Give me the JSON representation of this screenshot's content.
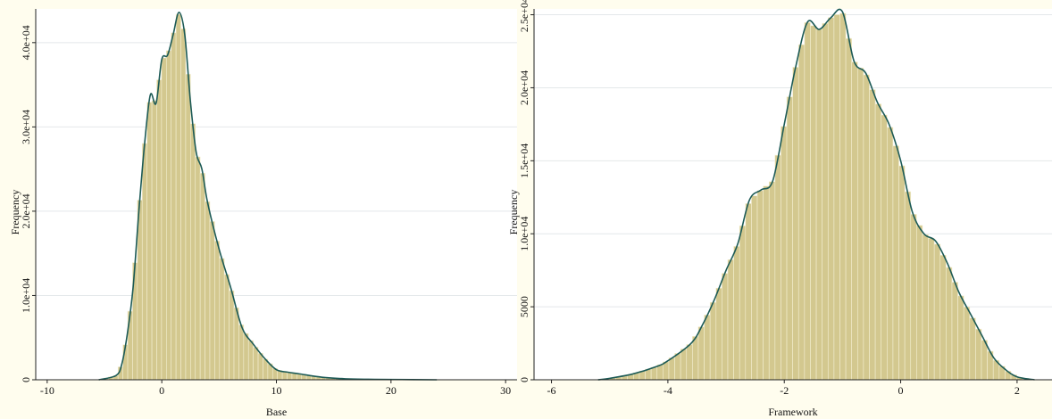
{
  "colors": {
    "background": "#fffdee",
    "plot_bg": "#ffffff",
    "bar_fill": "#d3c88f",
    "bar_edge": "#f4efd2",
    "density_line": "#1c5a56",
    "grid": "#e4e8ea",
    "axis": "#222222"
  },
  "chart_data": [
    {
      "type": "bar",
      "subtype": "histogram-with-density",
      "xlabel": "Base",
      "ylabel": "Frequency",
      "xlim": [
        -11,
        31
      ],
      "ylim": [
        0,
        44000
      ],
      "xticks": [
        {
          "value": -10,
          "label": "-10"
        },
        {
          "value": 0,
          "label": "0"
        },
        {
          "value": 10,
          "label": "10"
        },
        {
          "value": 20,
          "label": "20"
        },
        {
          "value": 30,
          "label": "30"
        }
      ],
      "yticks": [
        {
          "value": 0,
          "label": "0"
        },
        {
          "value": 10000,
          "label": "1.0e+04"
        },
        {
          "value": 20000,
          "label": "2.0e+04"
        },
        {
          "value": 30000,
          "label": "3.0e+04"
        },
        {
          "value": 40000,
          "label": "4.0e+04"
        }
      ],
      "grid": true,
      "density_x": [
        -5.5,
        -4,
        -3.5,
        -3,
        -2.5,
        -2,
        -1.5,
        -1,
        -0.5,
        0,
        0.5,
        1,
        1.5,
        2,
        2.5,
        3,
        3.5,
        4,
        5,
        6,
        7,
        8,
        9,
        10,
        11,
        12,
        14,
        16,
        18,
        20,
        24
      ],
      "density_y": [
        0,
        500,
        1800,
        5500,
        11000,
        20000,
        28000,
        33800,
        32800,
        38000,
        38500,
        41000,
        43600,
        41000,
        33000,
        27000,
        25000,
        21000,
        15500,
        11000,
        6200,
        4200,
        2500,
        1200,
        900,
        700,
        300,
        120,
        60,
        40,
        0
      ]
    },
    {
      "type": "bar",
      "subtype": "histogram-with-density",
      "xlabel": "Framework",
      "ylabel": "Frequency",
      "xlim": [
        -6.3,
        2.6
      ],
      "ylim": [
        0,
        25400
      ],
      "xticks": [
        {
          "value": -6,
          "label": "-6"
        },
        {
          "value": -4,
          "label": "-4"
        },
        {
          "value": -2,
          "label": "-2"
        },
        {
          "value": 0,
          "label": "0"
        },
        {
          "value": 2,
          "label": "2"
        }
      ],
      "yticks": [
        {
          "value": 0,
          "label": "0"
        },
        {
          "value": 5000,
          "label": "5000"
        },
        {
          "value": 10000,
          "label": "1.0e+04"
        },
        {
          "value": 15000,
          "label": "1.5e+04"
        },
        {
          "value": 20000,
          "label": "2.0e+04"
        },
        {
          "value": 25000,
          "label": "2.5e+04"
        }
      ],
      "grid": true,
      "density_x": [
        -5.2,
        -5.0,
        -4.6,
        -4.2,
        -4.0,
        -3.6,
        -3.4,
        -3.2,
        -3.0,
        -2.8,
        -2.6,
        -2.4,
        -2.2,
        -2.0,
        -1.8,
        -1.6,
        -1.4,
        -1.2,
        -1.0,
        -0.8,
        -0.6,
        -0.4,
        -0.2,
        0.0,
        0.2,
        0.4,
        0.6,
        0.8,
        1.0,
        1.2,
        1.4,
        1.6,
        1.8,
        2.0,
        2.3
      ],
      "density_y": [
        0,
        100,
        400,
        900,
        1300,
        2500,
        3800,
        5500,
        7500,
        9300,
        12300,
        13000,
        13600,
        17500,
        21500,
        24500,
        24000,
        24800,
        25200,
        21800,
        21000,
        19000,
        17500,
        15000,
        11500,
        10000,
        9500,
        8000,
        6000,
        4500,
        3000,
        1500,
        700,
        200,
        0
      ]
    }
  ]
}
